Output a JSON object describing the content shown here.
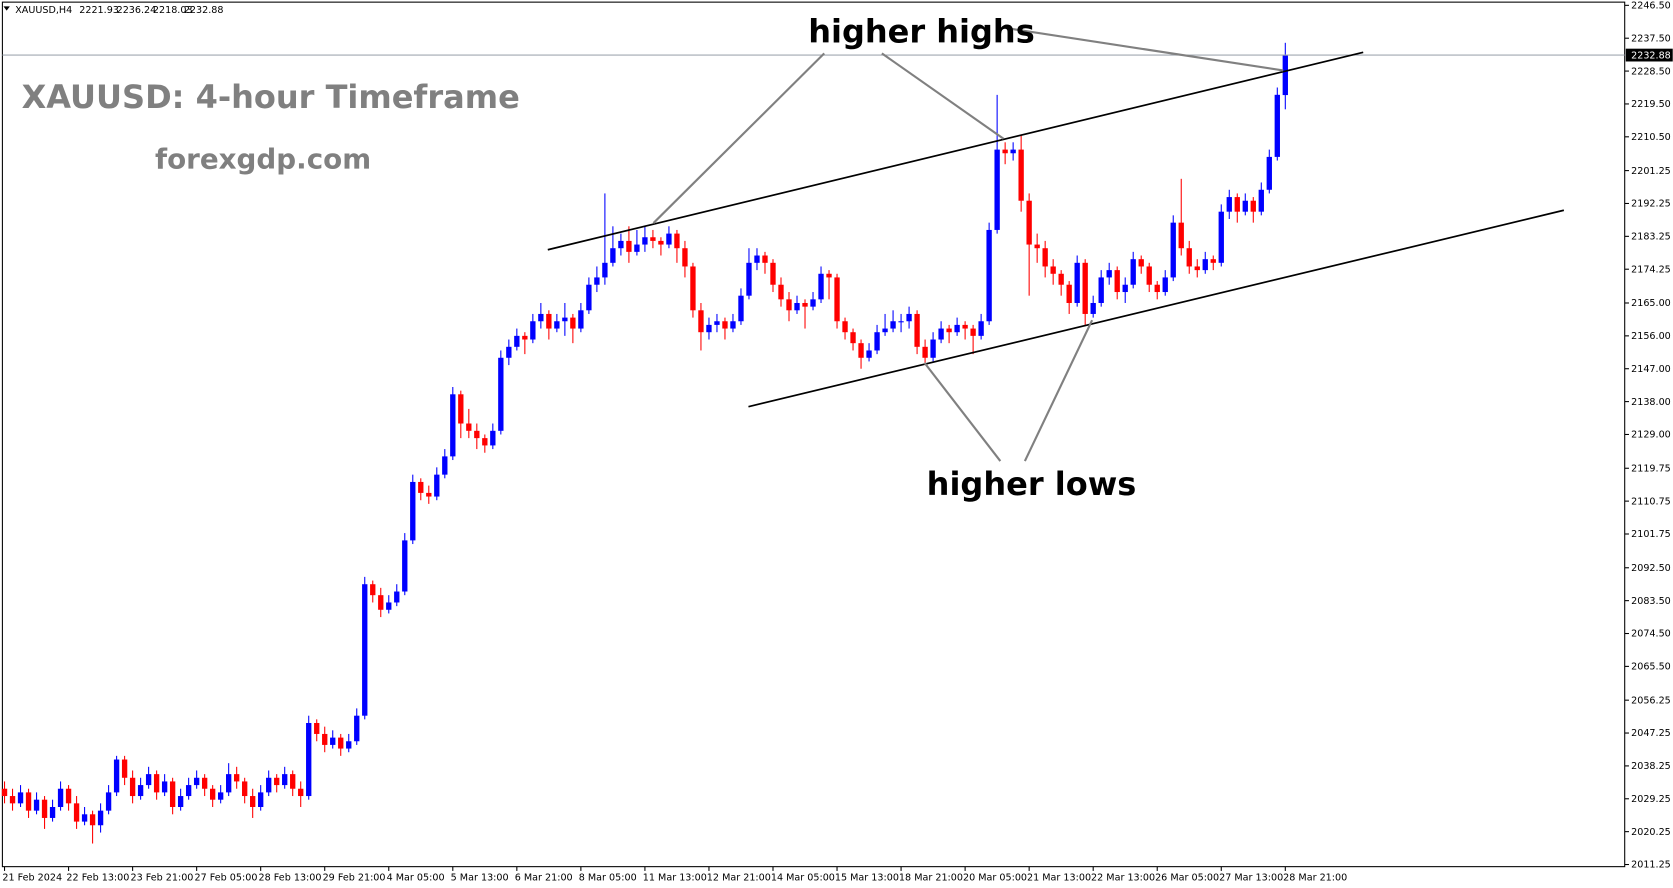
{
  "chart_data": {
    "type": "candlestick",
    "symbol": "XAUUSD,H4",
    "title": "XAUUSD: 4-hour Timeframe",
    "subtitle": "forexgdp.com",
    "annotations": [
      "higher highs",
      "higher lows"
    ],
    "up_color": "#0000ff",
    "down_color": "#ff0000",
    "current_price": 2232.88,
    "ylim": [
      2011.25,
      2246.5
    ],
    "yticks": [
      {
        "value": 2246.5,
        "label": "2246.50"
      },
      {
        "value": 2237.5,
        "label": "2237.50"
      },
      {
        "value": 2228.5,
        "label": "2228.50"
      },
      {
        "value": 2219.5,
        "label": "2219.50"
      },
      {
        "value": 2210.5,
        "label": "2210.50"
      },
      {
        "value": 2201.25,
        "label": "2201.25"
      },
      {
        "value": 2192.25,
        "label": "2192.25"
      },
      {
        "value": 2183.25,
        "label": "2183.25"
      },
      {
        "value": 2174.25,
        "label": "2174.25"
      },
      {
        "value": 2165,
        "label": "2165.00"
      },
      {
        "value": 2156,
        "label": "2156.00"
      },
      {
        "value": 2147,
        "label": "2147.00"
      },
      {
        "value": 2138,
        "label": "2138.00"
      },
      {
        "value": 2129,
        "label": "2129.00"
      },
      {
        "value": 2119.75,
        "label": "2119.75"
      },
      {
        "value": 2110.75,
        "label": "2110.75"
      },
      {
        "value": 2101.75,
        "label": "2101.75"
      },
      {
        "value": 2092.5,
        "label": "2092.50"
      },
      {
        "value": 2083.5,
        "label": "2083.50"
      },
      {
        "value": 2074.5,
        "label": "2074.50"
      },
      {
        "value": 2065.5,
        "label": "2065.50"
      },
      {
        "value": 2056.25,
        "label": "2056.25"
      },
      {
        "value": 2047.25,
        "label": "2047.25"
      },
      {
        "value": 2038.25,
        "label": "2038.25"
      },
      {
        "value": 2029.25,
        "label": "2029.25"
      },
      {
        "value": 2020.25,
        "label": "2020.25"
      },
      {
        "value": 2011.25,
        "label": "2011.25"
      }
    ],
    "xticks": [
      {
        "value": 0,
        "label": "21 Feb 2024"
      },
      {
        "value": 8,
        "label": "22 Feb 13:00"
      },
      {
        "value": 16,
        "label": "23 Feb 21:00"
      },
      {
        "value": 24,
        "label": "27 Feb 05:00"
      },
      {
        "value": 32,
        "label": "28 Feb 13:00"
      },
      {
        "value": 40,
        "label": "29 Feb 21:00"
      },
      {
        "value": 48,
        "label": "4 Mar 05:00"
      },
      {
        "value": 56,
        "label": "5 Mar 13:00"
      },
      {
        "value": 64,
        "label": "6 Mar 21:00"
      },
      {
        "value": 72,
        "label": "8 Mar 05:00"
      },
      {
        "value": 80,
        "label": "11 Mar 13:00"
      },
      {
        "value": 88,
        "label": "12 Mar 21:00"
      },
      {
        "value": 96,
        "label": "14 Mar 05:00"
      },
      {
        "value": 104,
        "label": "15 Mar 13:00"
      },
      {
        "value": 112,
        "label": "18 Mar 21:00"
      },
      {
        "value": 120,
        "label": "20 Mar 05:00"
      },
      {
        "value": 128,
        "label": "21 Mar 13:00"
      },
      {
        "value": 136,
        "label": "22 Mar 13:00"
      },
      {
        "value": 144,
        "label": "26 Mar 05:00"
      },
      {
        "value": 152,
        "label": "27 Mar 13:00"
      },
      {
        "value": 160,
        "label": "28 Mar 21:00"
      }
    ],
    "ohlc": [
      [
        2032,
        2034,
        2028,
        2030
      ],
      [
        2030,
        2032,
        2026,
        2028
      ],
      [
        2028,
        2033,
        2027,
        2031
      ],
      [
        2031,
        2032,
        2024,
        2026
      ],
      [
        2026,
        2031,
        2025,
        2029
      ],
      [
        2029,
        2030,
        2021,
        2024
      ],
      [
        2024,
        2029,
        2023,
        2027
      ],
      [
        2027,
        2034,
        2026,
        2032
      ],
      [
        2032,
        2033,
        2026,
        2028
      ],
      [
        2028,
        2030,
        2021,
        2023
      ],
      [
        2023,
        2027,
        2022,
        2025
      ],
      [
        2025,
        2026,
        2017,
        2022
      ],
      [
        2022,
        2028,
        2020,
        2026
      ],
      [
        2026,
        2033,
        2025,
        2031
      ],
      [
        2031,
        2041,
        2030,
        2040
      ],
      [
        2040,
        2041,
        2033,
        2035
      ],
      [
        2035,
        2037,
        2028,
        2030
      ],
      [
        2030,
        2035,
        2029,
        2033
      ],
      [
        2033,
        2038,
        2032,
        2036
      ],
      [
        2036,
        2037,
        2029,
        2031
      ],
      [
        2031,
        2036,
        2030,
        2034
      ],
      [
        2034,
        2035,
        2025,
        2027
      ],
      [
        2027,
        2032,
        2026,
        2030
      ],
      [
        2030,
        2035,
        2029,
        2033
      ],
      [
        2033,
        2037,
        2032,
        2035
      ],
      [
        2035,
        2036,
        2030,
        2032
      ],
      [
        2032,
        2033,
        2027,
        2029
      ],
      [
        2029,
        2033,
        2028,
        2031
      ],
      [
        2031,
        2039,
        2030,
        2036
      ],
      [
        2036,
        2038,
        2032,
        2034
      ],
      [
        2034,
        2035,
        2028,
        2030
      ],
      [
        2030,
        2032,
        2024,
        2027
      ],
      [
        2027,
        2033,
        2026,
        2031
      ],
      [
        2031,
        2037,
        2030,
        2035
      ],
      [
        2035,
        2036,
        2031,
        2033
      ],
      [
        2033,
        2038,
        2032,
        2036
      ],
      [
        2036,
        2037,
        2030,
        2032
      ],
      [
        2032,
        2034,
        2027,
        2030
      ],
      [
        2030,
        2052,
        2029,
        2050
      ],
      [
        2050,
        2051,
        2045,
        2047
      ],
      [
        2047,
        2049,
        2042,
        2044
      ],
      [
        2044,
        2048,
        2043,
        2046
      ],
      [
        2046,
        2047,
        2041,
        2043
      ],
      [
        2043,
        2047,
        2042,
        2045
      ],
      [
        2045,
        2054,
        2044,
        2052
      ],
      [
        2052,
        2090,
        2051,
        2088
      ],
      [
        2088,
        2089,
        2083,
        2085
      ],
      [
        2085,
        2087,
        2079,
        2081
      ],
      [
        2081,
        2085,
        2080,
        2083
      ],
      [
        2083,
        2088,
        2082,
        2086
      ],
      [
        2086,
        2102,
        2085,
        2100
      ],
      [
        2100,
        2118,
        2099,
        2116
      ],
      [
        2116,
        2117,
        2111,
        2113
      ],
      [
        2113,
        2115,
        2110,
        2112
      ],
      [
        2112,
        2120,
        2111,
        2118
      ],
      [
        2118,
        2125,
        2117,
        2123
      ],
      [
        2123,
        2142,
        2122,
        2140
      ],
      [
        2140,
        2141,
        2128,
        2132
      ],
      [
        2132,
        2136,
        2128,
        2130
      ],
      [
        2130,
        2132,
        2125,
        2128
      ],
      [
        2128,
        2129,
        2124,
        2126
      ],
      [
        2126,
        2132,
        2125,
        2130
      ],
      [
        2130,
        2152,
        2129,
        2150
      ],
      [
        2150,
        2155,
        2148,
        2153
      ],
      [
        2153,
        2158,
        2152,
        2156
      ],
      [
        2156,
        2157,
        2151,
        2155
      ],
      [
        2155,
        2162,
        2154,
        2160
      ],
      [
        2160,
        2165,
        2158,
        2162
      ],
      [
        2162,
        2163,
        2155,
        2158
      ],
      [
        2158,
        2162,
        2157,
        2160
      ],
      [
        2160,
        2165,
        2156,
        2161
      ],
      [
        2161,
        2162,
        2154,
        2158
      ],
      [
        2158,
        2165,
        2157,
        2163
      ],
      [
        2163,
        2172,
        2162,
        2170
      ],
      [
        2170,
        2175,
        2168,
        2172
      ],
      [
        2172,
        2195,
        2170,
        2176
      ],
      [
        2176,
        2186,
        2175,
        2180
      ],
      [
        2180,
        2184,
        2178,
        2182
      ],
      [
        2182,
        2186,
        2176,
        2179
      ],
      [
        2179,
        2185,
        2178,
        2181
      ],
      [
        2181,
        2186,
        2179,
        2183
      ],
      [
        2183,
        2185,
        2180,
        2182
      ],
      [
        2182,
        2183,
        2178,
        2181
      ],
      [
        2181,
        2186,
        2180,
        2184
      ],
      [
        2184,
        2185,
        2176,
        2180
      ],
      [
        2180,
        2182,
        2172,
        2175
      ],
      [
        2175,
        2176,
        2161,
        2163
      ],
      [
        2163,
        2165,
        2152,
        2157
      ],
      [
        2157,
        2161,
        2155,
        2159
      ],
      [
        2159,
        2162,
        2157,
        2160
      ],
      [
        2160,
        2161,
        2155,
        2158
      ],
      [
        2158,
        2162,
        2157,
        2160
      ],
      [
        2160,
        2169,
        2159,
        2167
      ],
      [
        2167,
        2180,
        2166,
        2176
      ],
      [
        2176,
        2180,
        2174,
        2178
      ],
      [
        2178,
        2179,
        2173,
        2176
      ],
      [
        2176,
        2177,
        2168,
        2170
      ],
      [
        2170,
        2172,
        2164,
        2166
      ],
      [
        2166,
        2168,
        2160,
        2163
      ],
      [
        2163,
        2167,
        2162,
        2165
      ],
      [
        2165,
        2166,
        2158,
        2164
      ],
      [
        2164,
        2168,
        2163,
        2166
      ],
      [
        2166,
        2175,
        2165,
        2173
      ],
      [
        2173,
        2174,
        2166,
        2172
      ],
      [
        2172,
        2173,
        2158,
        2160
      ],
      [
        2160,
        2161,
        2155,
        2157
      ],
      [
        2157,
        2158,
        2152,
        2154
      ],
      [
        2154,
        2155,
        2147,
        2150
      ],
      [
        2150,
        2154,
        2149,
        2152
      ],
      [
        2152,
        2159,
        2151,
        2157
      ],
      [
        2157,
        2162,
        2156,
        2158
      ],
      [
        2158,
        2163,
        2157,
        2160
      ],
      [
        2160,
        2162,
        2157,
        2160
      ],
      [
        2160,
        2164,
        2158,
        2162
      ],
      [
        2162,
        2163,
        2151,
        2153
      ],
      [
        2153,
        2155,
        2148,
        2150
      ],
      [
        2150,
        2157,
        2149,
        2155
      ],
      [
        2155,
        2160,
        2154,
        2158
      ],
      [
        2158,
        2159,
        2154,
        2157
      ],
      [
        2157,
        2161,
        2156,
        2159
      ],
      [
        2159,
        2160,
        2155,
        2158
      ],
      [
        2158,
        2159,
        2151,
        2156
      ],
      [
        2156,
        2162,
        2155,
        2160
      ],
      [
        2160,
        2187,
        2159,
        2185
      ],
      [
        2185,
        2222,
        2184,
        2207
      ],
      [
        2207,
        2209,
        2203,
        2206
      ],
      [
        2206,
        2209,
        2204,
        2207
      ],
      [
        2207,
        2211,
        2190,
        2193
      ],
      [
        2193,
        2195,
        2167,
        2181
      ],
      [
        2181,
        2184,
        2176,
        2180
      ],
      [
        2180,
        2182,
        2172,
        2175
      ],
      [
        2175,
        2177,
        2170,
        2173
      ],
      [
        2173,
        2174,
        2167,
        2170
      ],
      [
        2170,
        2171,
        2162,
        2165
      ],
      [
        2165,
        2178,
        2164,
        2176
      ],
      [
        2176,
        2177,
        2159,
        2162
      ],
      [
        2162,
        2167,
        2161,
        2165
      ],
      [
        2165,
        2174,
        2164,
        2172
      ],
      [
        2172,
        2176,
        2170,
        2174
      ],
      [
        2174,
        2175,
        2166,
        2168
      ],
      [
        2168,
        2172,
        2165,
        2170
      ],
      [
        2170,
        2179,
        2169,
        2177
      ],
      [
        2177,
        2178,
        2173,
        2175
      ],
      [
        2175,
        2176,
        2168,
        2170
      ],
      [
        2170,
        2171,
        2166,
        2168
      ],
      [
        2168,
        2174,
        2167,
        2172
      ],
      [
        2172,
        2189,
        2171,
        2187
      ],
      [
        2187,
        2199,
        2178,
        2180
      ],
      [
        2180,
        2182,
        2173,
        2175
      ],
      [
        2175,
        2177,
        2172,
        2174
      ],
      [
        2174,
        2179,
        2173,
        2177
      ],
      [
        2177,
        2178,
        2174,
        2176
      ],
      [
        2176,
        2192,
        2175,
        2190
      ],
      [
        2190,
        2196,
        2188,
        2194
      ],
      [
        2194,
        2195,
        2187,
        2190
      ],
      [
        2190,
        2195,
        2189,
        2193
      ],
      [
        2193,
        2194,
        2187,
        2190
      ],
      [
        2190,
        2198,
        2189,
        2196
      ],
      [
        2196,
        2207,
        2195,
        2205
      ],
      [
        2205,
        2224,
        2204,
        2222
      ],
      [
        2221.93,
        2236.24,
        2218.03,
        2232.88
      ]
    ]
  }
}
